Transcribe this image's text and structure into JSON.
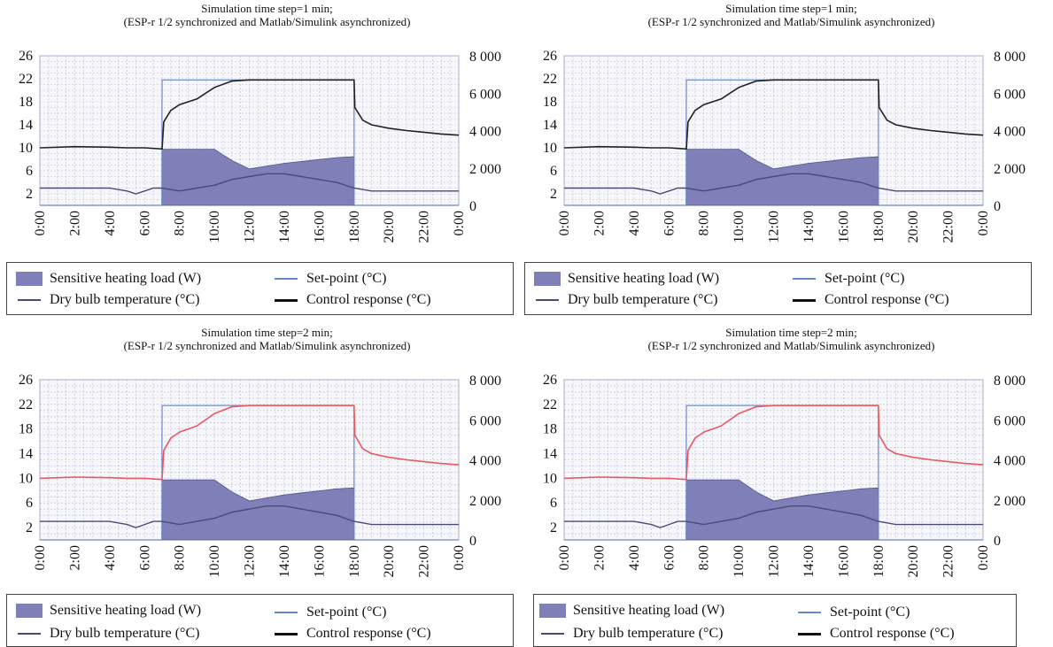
{
  "legend": {
    "heating_load": "Sensitive heating load (W)",
    "set_point": "Set-point (°C)",
    "dry_bulb": "Dry bulb temperature (°C)",
    "control_response": "Control response (°C)"
  },
  "colors": {
    "heating_fill": "#8080b8",
    "heating_edge": "#55558a",
    "set_point": "#6688cc",
    "dry_bulb": "#4a4a78",
    "response_black": "#222222",
    "response_red": "#e85a5a",
    "grid": "#b8bcd8"
  },
  "chart_data": [
    {
      "type": "line",
      "title": [
        "Simulation time step=1 min;",
        "(ESP-r 1/2 synchronized and Matlab/Simulink asynchronized)"
      ],
      "x_ticks": [
        "0:00",
        "2:00",
        "4:00",
        "6:00",
        "8:00",
        "10:00",
        "12:00",
        "14:00",
        "16:00",
        "18:00",
        "20:00",
        "22:00",
        "0:00"
      ],
      "y_left_ticks": [
        26,
        22,
        18,
        14,
        10,
        6,
        2
      ],
      "y_left_range": [
        0,
        26
      ],
      "y_right_ticks": [
        "8 000",
        "6 000",
        "4 000",
        "2 000",
        "0"
      ],
      "y_right_range": [
        0,
        8000
      ],
      "grid": true,
      "series": [
        {
          "name": "Sensitive heating load (W)",
          "kind": "area",
          "axis": "right",
          "x": [
            0,
            6.99,
            7,
            10,
            11,
            12,
            13,
            14,
            15,
            16,
            17,
            17.99,
            18,
            24
          ],
          "y": [
            0,
            0,
            3000,
            3000,
            2400,
            1950,
            2100,
            2250,
            2350,
            2450,
            2550,
            2600,
            0,
            0
          ]
        },
        {
          "name": "Set-point (°C)",
          "kind": "line",
          "axis": "left",
          "x": [
            0,
            6.99,
            7,
            18,
            18.01,
            24
          ],
          "y": [
            0,
            0,
            21.8,
            21.8,
            0,
            0
          ]
        },
        {
          "name": "Dry bulb temperature (°C)",
          "kind": "line",
          "axis": "left",
          "x": [
            0,
            1,
            2,
            3,
            4,
            5,
            5.5,
            6,
            6.5,
            7,
            8,
            9,
            10,
            11,
            12,
            13,
            14,
            15,
            16,
            17,
            18,
            19,
            20,
            21,
            22,
            23,
            24
          ],
          "y": [
            3,
            3,
            3,
            3,
            3,
            2.5,
            2,
            2.5,
            3,
            3,
            2.5,
            3,
            3.5,
            4.5,
            5,
            5.5,
            5.5,
            5,
            4.5,
            4,
            3,
            2.5,
            2.5,
            2.5,
            2.5,
            2.5,
            2.5
          ]
        },
        {
          "name": "Control response (°C)",
          "kind": "line",
          "axis": "left",
          "color": "black",
          "x": [
            0,
            2,
            4,
            5,
            6,
            7,
            7.1,
            7.5,
            8,
            9,
            10,
            11,
            12,
            18,
            18.05,
            18.5,
            19,
            20,
            21,
            22,
            23,
            24
          ],
          "y": [
            10,
            10.2,
            10.1,
            10,
            10,
            9.8,
            14.5,
            16.5,
            17.5,
            18.5,
            20.5,
            21.6,
            21.8,
            21.8,
            17,
            14.8,
            14,
            13.4,
            13,
            12.7,
            12.4,
            12.2
          ]
        }
      ]
    },
    {
      "type": "line",
      "title": [
        "Simulation time step=1 min;",
        "(ESP-r 1/2 synchronized and Matlab/Simulink asynchronized)"
      ],
      "x_ticks": [
        "0:00",
        "2:00",
        "4:00",
        "6:00",
        "8:00",
        "10:00",
        "12:00",
        "14:00",
        "16:00",
        "18:00",
        "20:00",
        "22:00",
        "0:00"
      ],
      "y_left_ticks": [
        26,
        22,
        18,
        14,
        10,
        6,
        2
      ],
      "y_left_range": [
        0,
        26
      ],
      "y_right_ticks": [
        "8 000",
        "6 000",
        "4 000",
        "2 000",
        "0"
      ],
      "y_right_range": [
        0,
        8000
      ],
      "grid": true,
      "series": [
        {
          "name": "Sensitive heating load (W)",
          "kind": "area",
          "axis": "right",
          "x": [
            0,
            6.99,
            7,
            10,
            11,
            12,
            13,
            14,
            15,
            16,
            17,
            17.99,
            18,
            24
          ],
          "y": [
            0,
            0,
            3000,
            3000,
            2400,
            1950,
            2100,
            2250,
            2350,
            2450,
            2550,
            2600,
            0,
            0
          ]
        },
        {
          "name": "Set-point (°C)",
          "kind": "line",
          "axis": "left",
          "x": [
            0,
            6.99,
            7,
            18,
            18.01,
            24
          ],
          "y": [
            0,
            0,
            21.8,
            21.8,
            0,
            0
          ]
        },
        {
          "name": "Dry bulb temperature (°C)",
          "kind": "line",
          "axis": "left",
          "x": [
            0,
            1,
            2,
            3,
            4,
            5,
            5.5,
            6,
            6.5,
            7,
            8,
            9,
            10,
            11,
            12,
            13,
            14,
            15,
            16,
            17,
            18,
            19,
            20,
            21,
            22,
            23,
            24
          ],
          "y": [
            3,
            3,
            3,
            3,
            3,
            2.5,
            2,
            2.5,
            3,
            3,
            2.5,
            3,
            3.5,
            4.5,
            5,
            5.5,
            5.5,
            5,
            4.5,
            4,
            3,
            2.5,
            2.5,
            2.5,
            2.5,
            2.5,
            2.5
          ]
        },
        {
          "name": "Control response (°C)",
          "kind": "line",
          "axis": "left",
          "color": "black",
          "x": [
            0,
            2,
            4,
            5,
            6,
            7,
            7.1,
            7.5,
            8,
            9,
            10,
            11,
            12,
            18,
            18.05,
            18.5,
            19,
            20,
            21,
            22,
            23,
            24
          ],
          "y": [
            10,
            10.2,
            10.1,
            10,
            10,
            9.8,
            14.5,
            16.5,
            17.5,
            18.5,
            20.5,
            21.6,
            21.8,
            21.8,
            17,
            14.8,
            14,
            13.4,
            13,
            12.7,
            12.4,
            12.2
          ]
        }
      ]
    },
    {
      "type": "line",
      "title": [
        "Simulation time step=2 min;",
        "(ESP-r 1/2 synchronized and Matlab/Simulink asynchronized)"
      ],
      "x_ticks": [
        "0:00",
        "2:00",
        "4:00",
        "6:00",
        "8:00",
        "10:00",
        "12:00",
        "14:00",
        "16:00",
        "18:00",
        "20:00",
        "22:00",
        "0:00"
      ],
      "y_left_ticks": [
        26,
        22,
        18,
        14,
        10,
        6,
        2
      ],
      "y_left_range": [
        0,
        26
      ],
      "y_right_ticks": [
        "8 000",
        "6 000",
        "4 000",
        "2 000",
        "0"
      ],
      "y_right_range": [
        0,
        8000
      ],
      "grid": true,
      "series": [
        {
          "name": "Sensitive heating load (W)",
          "kind": "area",
          "axis": "right",
          "x": [
            0,
            6.99,
            7,
            10,
            11,
            12,
            13,
            14,
            15,
            16,
            17,
            17.99,
            18,
            24
          ],
          "y": [
            0,
            0,
            3000,
            3000,
            2400,
            1950,
            2100,
            2250,
            2350,
            2450,
            2550,
            2600,
            0,
            0
          ]
        },
        {
          "name": "Set-point (°C)",
          "kind": "line",
          "axis": "left",
          "x": [
            0,
            6.99,
            7,
            18,
            18.01,
            24
          ],
          "y": [
            0,
            0,
            21.8,
            21.8,
            0,
            0
          ]
        },
        {
          "name": "Dry bulb temperature (°C)",
          "kind": "line",
          "axis": "left",
          "x": [
            0,
            1,
            2,
            3,
            4,
            5,
            5.5,
            6,
            6.5,
            7,
            8,
            9,
            10,
            11,
            12,
            13,
            14,
            15,
            16,
            17,
            18,
            19,
            20,
            21,
            22,
            23,
            24
          ],
          "y": [
            3,
            3,
            3,
            3,
            3,
            2.5,
            2,
            2.5,
            3,
            3,
            2.5,
            3,
            3.5,
            4.5,
            5,
            5.5,
            5.5,
            5,
            4.5,
            4,
            3,
            2.5,
            2.5,
            2.5,
            2.5,
            2.5,
            2.5
          ]
        },
        {
          "name": "Control response (°C)",
          "kind": "line",
          "axis": "left",
          "color": "red",
          "x": [
            0,
            2,
            4,
            5,
            6,
            7,
            7.1,
            7.5,
            8,
            9,
            10,
            11,
            12,
            18,
            18.05,
            18.5,
            19,
            20,
            21,
            22,
            23,
            24
          ],
          "y": [
            10,
            10.2,
            10.1,
            10,
            10,
            9.8,
            14.5,
            16.5,
            17.5,
            18.5,
            20.5,
            21.6,
            21.8,
            21.8,
            17,
            14.8,
            14,
            13.4,
            13,
            12.7,
            12.4,
            12.2
          ]
        }
      ]
    },
    {
      "type": "line",
      "title": [
        "Simulation time step=2 min;",
        "(ESP-r 1/2 synchronized and Matlab/Simulink asynchronized)"
      ],
      "x_ticks": [
        "0:00",
        "2:00",
        "4:00",
        "6:00",
        "8:00",
        "10:00",
        "12:00",
        "14:00",
        "16:00",
        "18:00",
        "20:00",
        "22:00",
        "0:00"
      ],
      "y_left_ticks": [
        26,
        22,
        18,
        14,
        10,
        6,
        2
      ],
      "y_left_range": [
        0,
        26
      ],
      "y_right_ticks": [
        "8 000",
        "6 000",
        "4 000",
        "2 000",
        "0"
      ],
      "y_right_range": [
        0,
        8000
      ],
      "grid": true,
      "series": [
        {
          "name": "Sensitive heating load (W)",
          "kind": "area",
          "axis": "right",
          "x": [
            0,
            6.99,
            7,
            10,
            11,
            12,
            13,
            14,
            15,
            16,
            17,
            17.99,
            18,
            24
          ],
          "y": [
            0,
            0,
            3000,
            3000,
            2400,
            1950,
            2100,
            2250,
            2350,
            2450,
            2550,
            2600,
            0,
            0
          ]
        },
        {
          "name": "Set-point (°C)",
          "kind": "line",
          "axis": "left",
          "x": [
            0,
            6.99,
            7,
            18,
            18.01,
            24
          ],
          "y": [
            0,
            0,
            21.8,
            21.8,
            0,
            0
          ]
        },
        {
          "name": "Dry bulb temperature (°C)",
          "kind": "line",
          "axis": "left",
          "x": [
            0,
            1,
            2,
            3,
            4,
            5,
            5.5,
            6,
            6.5,
            7,
            8,
            9,
            10,
            11,
            12,
            13,
            14,
            15,
            16,
            17,
            18,
            19,
            20,
            21,
            22,
            23,
            24
          ],
          "y": [
            3,
            3,
            3,
            3,
            3,
            2.5,
            2,
            2.5,
            3,
            3,
            2.5,
            3,
            3.5,
            4.5,
            5,
            5.5,
            5.5,
            5,
            4.5,
            4,
            3,
            2.5,
            2.5,
            2.5,
            2.5,
            2.5,
            2.5
          ]
        },
        {
          "name": "Control response (°C)",
          "kind": "line",
          "axis": "left",
          "color": "red",
          "x": [
            0,
            2,
            4,
            5,
            6,
            7,
            7.1,
            7.5,
            8,
            9,
            10,
            11,
            12,
            18,
            18.05,
            18.5,
            19,
            20,
            21,
            22,
            23,
            24
          ],
          "y": [
            10,
            10.2,
            10.1,
            10,
            10,
            9.8,
            14.5,
            16.5,
            17.5,
            18.5,
            20.5,
            21.6,
            21.8,
            21.8,
            17,
            14.8,
            14,
            13.4,
            13,
            12.7,
            12.4,
            12.2
          ]
        }
      ]
    }
  ]
}
